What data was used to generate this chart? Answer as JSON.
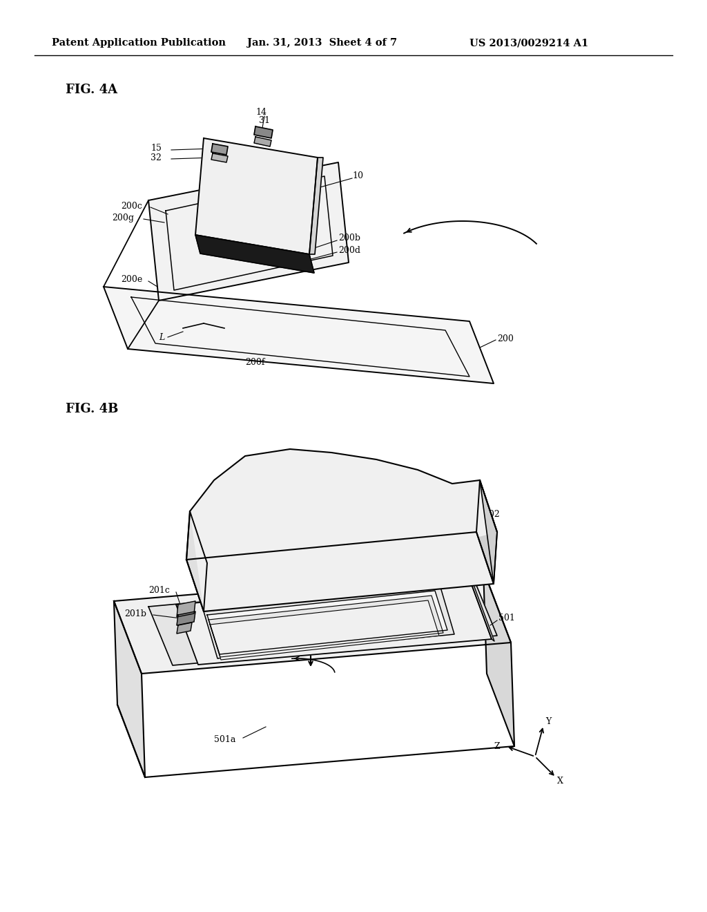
{
  "bg_color": "#ffffff",
  "header_left": "Patent Application Publication",
  "header_mid": "Jan. 31, 2013  Sheet 4 of 7",
  "header_right": "US 2013/0029214 A1",
  "fig4a_label": "FIG. 4A",
  "fig4b_label": "FIG. 4B",
  "line_color": "#000000",
  "text_color": "#000000",
  "font_size_header": 10.5,
  "font_size_label": 12,
  "font_size_annot": 9
}
